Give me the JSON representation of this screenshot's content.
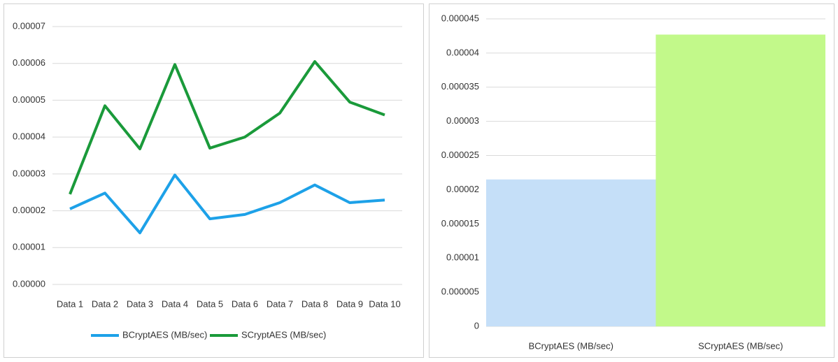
{
  "chart_data": [
    {
      "type": "line",
      "categories": [
        "Data 1",
        "Data 2",
        "Data 3",
        "Data 4",
        "Data 5",
        "Data 6",
        "Data 7",
        "Data 8",
        "Data 9",
        "Data 10"
      ],
      "series": [
        {
          "name": "BCryptAES (MB/sec)",
          "color": "#1da1e8",
          "values": [
            2.05e-05,
            2.48e-05,
            1.4e-05,
            2.97e-05,
            1.78e-05,
            1.9e-05,
            2.22e-05,
            2.7e-05,
            2.22e-05,
            2.29e-05
          ]
        },
        {
          "name": "SCryptAES (MB/sec)",
          "color": "#1a9a3a",
          "values": [
            2.45e-05,
            4.85e-05,
            3.68e-05,
            5.97e-05,
            3.7e-05,
            4e-05,
            4.65e-05,
            6.05e-05,
            4.95e-05,
            4.6e-05
          ]
        }
      ],
      "ylim": [
        0,
        7e-05
      ],
      "yticks": [
        {
          "value": 0,
          "label": "0.00000"
        },
        1e-05,
        2e-05,
        3e-05,
        4e-05,
        5e-05,
        6e-05,
        7e-05
      ],
      "grid": true,
      "legend": "bottom"
    },
    {
      "type": "bar",
      "categories": [
        "BCryptAES (MB/sec)",
        "SCryptAES (MB/sec)"
      ],
      "values": [
        2.15e-05,
        4.27e-05
      ],
      "colors": [
        "#c5dff8",
        "#c2f98a"
      ],
      "ylim": [
        0,
        4.5e-05
      ],
      "yticks": [
        0,
        5e-06,
        1e-05,
        1.5e-05,
        2e-05,
        2.5e-05,
        3e-05,
        3.5e-05,
        4e-05,
        4.5e-05
      ],
      "grid": true
    }
  ]
}
